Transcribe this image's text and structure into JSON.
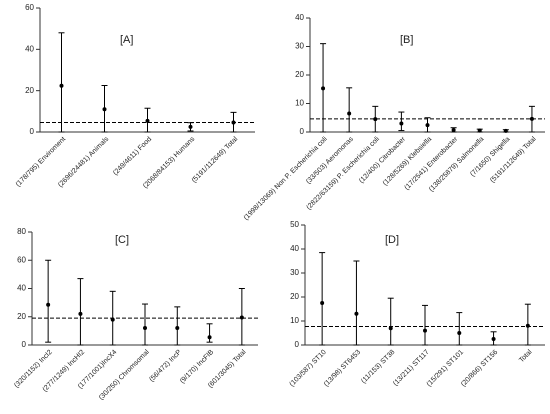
{
  "chart_data": [
    {
      "type": "errorbar",
      "title": "[A]",
      "categories": [
        "(178/795) Enviroment",
        "(2696/24481) Animals",
        "(249/4611) Food",
        "(2068/84153) Humans",
        "(5191/112649) Total"
      ],
      "values": [
        22.4,
        11,
        5.4,
        2.5,
        4.6
      ],
      "lower": [
        0,
        0,
        0,
        0.5,
        0
      ],
      "upper": [
        48,
        22.5,
        11.5,
        4.5,
        9.5
      ],
      "reference": 4.6,
      "ylim": [
        0,
        60
      ],
      "yticks": [
        0,
        20,
        40,
        60
      ],
      "color": "#000000"
    },
    {
      "type": "errorbar",
      "title": "[B]",
      "categories": [
        "(1998/13069) Non P. Escherichia coli",
        "(33/503) Aeromonas",
        "(2822/63159) P. Escherichia coli",
        "(12/400) Citrobacter",
        "(128/5269) Klebsiella",
        "(17/2541) Enterobacter",
        "(138/25879) Salmonella",
        "(7/1650) Shigella",
        "(5191/112649) Total"
      ],
      "values": [
        15.3,
        6.5,
        4.5,
        3,
        2.4,
        0.7,
        0.5,
        0.4,
        4.6
      ],
      "lower": [
        0,
        0,
        0,
        0.5,
        0,
        0,
        0,
        0,
        0
      ],
      "upper": [
        31,
        15.5,
        9,
        7,
        5,
        1.5,
        1,
        0.8,
        9
      ],
      "reference": 4.6,
      "ylim": [
        0,
        40
      ],
      "yticks": [
        0,
        10,
        20,
        30,
        40
      ],
      "color": "#000000"
    },
    {
      "type": "errorbar",
      "title": "[C]",
      "categories": [
        "(320/1152) IncI2",
        "(277/1249) IncHI2",
        "(177/1001)IncX4",
        "(30/250) Chromsomal",
        "(56/472) IncP",
        "(9/170) IncFIB",
        "(601/3045) Total"
      ],
      "values": [
        28.5,
        22,
        18,
        12,
        12,
        5.5,
        19.5
      ],
      "lower": [
        2,
        0,
        0,
        0,
        0,
        2,
        0
      ],
      "upper": [
        60,
        47,
        38,
        29,
        27,
        15,
        40
      ],
      "reference": 19,
      "ylim": [
        0,
        80
      ],
      "yticks": [
        0,
        20,
        40,
        60,
        80
      ],
      "color": "#000000"
    },
    {
      "type": "errorbar",
      "title": "[D]",
      "categories": [
        "(103/587) ST10",
        "(13/98) ST6453",
        "(11/153) ST38",
        "(13/211) ST117",
        "(15/291) ST101",
        "(20/866) ST156",
        "Total"
      ],
      "values": [
        17.5,
        13,
        7,
        6,
        5,
        2.5,
        8
      ],
      "lower": [
        0,
        0,
        0,
        0,
        0,
        0,
        0
      ],
      "upper": [
        38.5,
        35,
        19.5,
        16.5,
        13.5,
        5.5,
        17
      ],
      "reference": 7.7,
      "ylim": [
        0,
        50
      ],
      "yticks": [
        0,
        10,
        20,
        30,
        40,
        50
      ],
      "color": "#000000"
    }
  ]
}
